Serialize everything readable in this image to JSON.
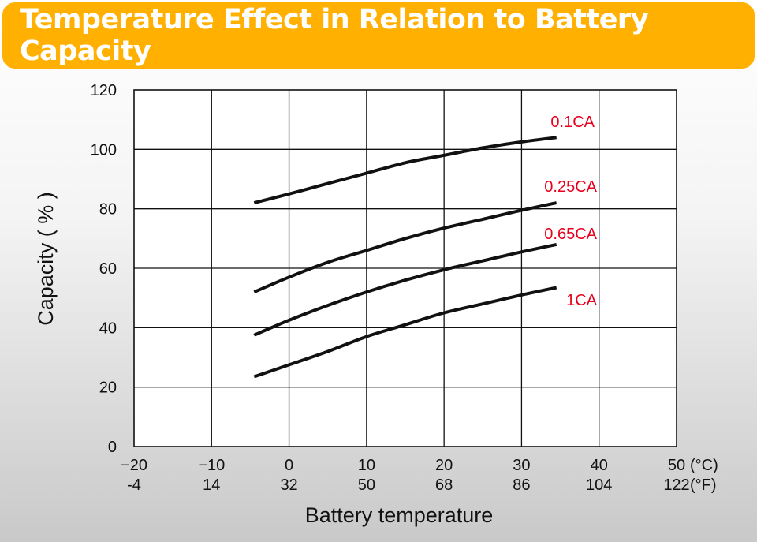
{
  "chart_data": {
    "type": "line",
    "title": "Temperature Effect in Relation to Battery Capacity",
    "xlabel": "Battery temperature",
    "ylabel": "Capacity ( % )",
    "x_unit": "(°C)",
    "x_secondary_unit": "(°F)",
    "xlim": [
      -20,
      50
    ],
    "ylim": [
      0,
      120
    ],
    "x_ticks": [
      -20,
      -10,
      0,
      10,
      20,
      30,
      40,
      50
    ],
    "x_secondary_ticks": [
      "-4",
      "14",
      "32",
      "50",
      "68",
      "86",
      "104",
      "122"
    ],
    "y_ticks": [
      0,
      20,
      40,
      60,
      80,
      100,
      120
    ],
    "grid": true,
    "series": [
      {
        "name": "0.1CA",
        "x": [
          -4.5,
          0,
          5,
          10,
          15,
          20,
          25,
          30,
          34.5
        ],
        "values": [
          82,
          85,
          88.5,
          92,
          95.5,
          98,
          100.5,
          102.5,
          104
        ]
      },
      {
        "name": "0.25CA",
        "x": [
          -4.5,
          0,
          5,
          10,
          15,
          20,
          25,
          30,
          34.5
        ],
        "values": [
          52,
          57,
          62,
          66,
          70,
          73.5,
          76.5,
          79.5,
          82
        ]
      },
      {
        "name": "0.65CA",
        "x": [
          -4.5,
          0,
          5,
          10,
          15,
          20,
          25,
          30,
          34.5
        ],
        "values": [
          37.5,
          42.5,
          47.5,
          52,
          56,
          59.5,
          62.5,
          65.5,
          68
        ]
      },
      {
        "name": "1CA",
        "x": [
          -4.5,
          0,
          5,
          10,
          15,
          20,
          25,
          30,
          34.5
        ],
        "values": [
          23.5,
          27.5,
          32,
          37,
          41,
          45,
          48,
          51,
          53.5
        ]
      }
    ],
    "colors": {
      "banner": "#ffb000",
      "line": "#111111",
      "label": "#e8001c",
      "grid": "#111111"
    }
  }
}
